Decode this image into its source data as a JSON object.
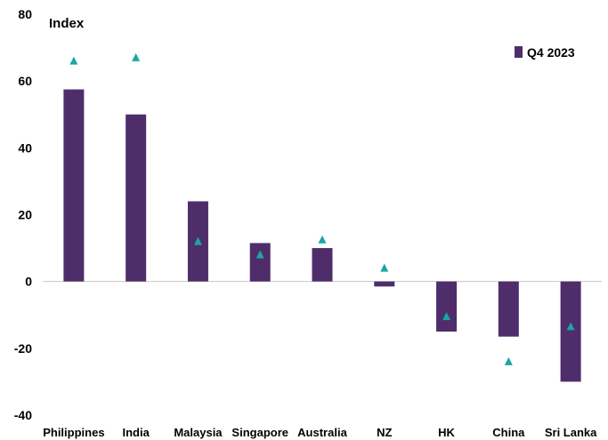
{
  "chart_data": {
    "type": "bar",
    "title": "",
    "ylabel": "Index",
    "xlabel": "",
    "ylim": [
      -40,
      80
    ],
    "yticks": [
      -40,
      -20,
      0,
      20,
      40,
      60,
      80
    ],
    "ytick_labels": [
      "-40",
      "-20",
      "0",
      "20",
      "40",
      "60",
      "80"
    ],
    "grid": false,
    "legend_position": "top-right",
    "categories": [
      "Philippines",
      "India",
      "Malaysia",
      "Singapore",
      "Australia",
      "NZ",
      "HK",
      "China",
      "Sri Lanka"
    ],
    "series": [
      {
        "name": "Q4 2023",
        "type": "bar",
        "color": "#4f2d6b",
        "values": [
          57.5,
          50,
          24,
          11.5,
          10,
          -1.5,
          -15,
          -16.5,
          -30
        ]
      },
      {
        "type": "marker",
        "marker": "triangle",
        "color": "#1aa6a6",
        "values": [
          66,
          67,
          12,
          8,
          12.5,
          4,
          -10.5,
          -24,
          -13.5
        ]
      }
    ]
  }
}
